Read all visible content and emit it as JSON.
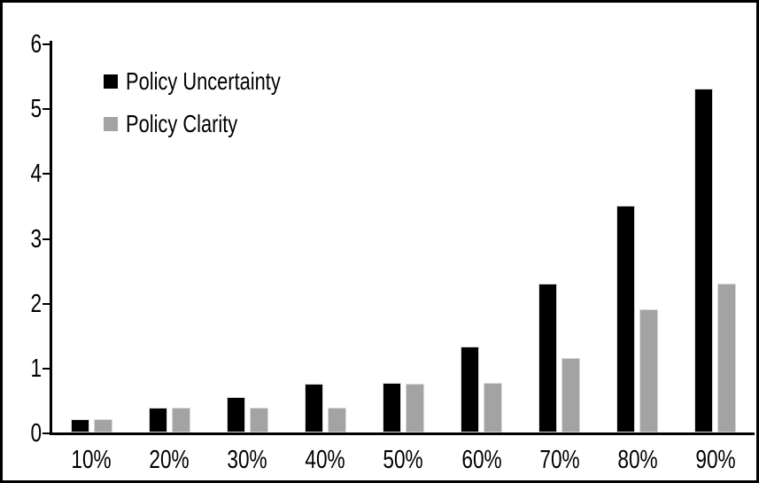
{
  "chart_data": {
    "type": "bar",
    "title": "",
    "xlabel": "",
    "ylabel": "",
    "categories": [
      "10%",
      "20%",
      "30%",
      "40%",
      "50%",
      "60%",
      "70%",
      "80%",
      "90%"
    ],
    "series": [
      {
        "name": "Policy Uncertainty",
        "color": "#000000",
        "values": [
          0.2,
          0.38,
          0.55,
          0.75,
          0.76,
          1.32,
          2.3,
          3.5,
          5.3
        ]
      },
      {
        "name": "Policy Clarity",
        "color": "#a3a3a3",
        "values": [
          0.2,
          0.38,
          0.38,
          0.38,
          0.75,
          0.76,
          1.15,
          1.9,
          2.3
        ]
      }
    ],
    "ylim": [
      0,
      6
    ],
    "yticks": [
      0,
      1,
      2,
      3,
      4,
      5,
      6
    ],
    "grid": false,
    "legend_position": "top-left-inside",
    "frame_color": "#000000",
    "background_color": "#ffffff"
  }
}
